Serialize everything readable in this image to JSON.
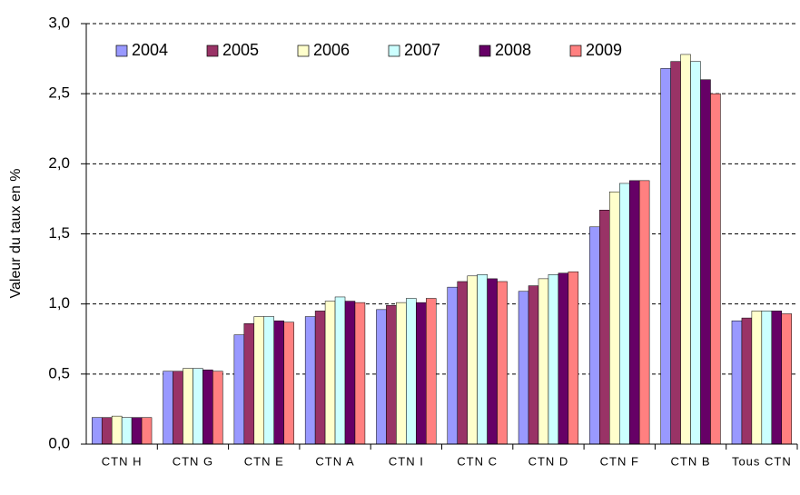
{
  "chart_data": {
    "type": "bar",
    "y_label": "Valeur du taux en %",
    "categories": [
      "CTN H",
      "CTN G",
      "CTN E",
      "CTN A",
      "CTN I",
      "CTN C",
      "CTN D",
      "CTN F",
      "CTN B",
      "Tous CTN"
    ],
    "series": [
      {
        "name": "2004",
        "color": "#9999ff",
        "values": [
          0.19,
          0.52,
          0.78,
          0.91,
          0.96,
          1.12,
          1.09,
          1.55,
          2.68,
          0.88
        ]
      },
      {
        "name": "2005",
        "color": "#993366",
        "values": [
          0.19,
          0.52,
          0.86,
          0.95,
          0.99,
          1.16,
          1.13,
          1.67,
          2.73,
          0.9
        ]
      },
      {
        "name": "2006",
        "color": "#ffffcc",
        "values": [
          0.2,
          0.54,
          0.91,
          1.02,
          1.01,
          1.2,
          1.18,
          1.8,
          2.78,
          0.95
        ]
      },
      {
        "name": "2007",
        "color": "#ccffff",
        "values": [
          0.19,
          0.54,
          0.91,
          1.05,
          1.04,
          1.21,
          1.21,
          1.86,
          2.73,
          0.95
        ]
      },
      {
        "name": "2008",
        "color": "#660066",
        "values": [
          0.19,
          0.53,
          0.88,
          1.02,
          1.01,
          1.18,
          1.22,
          1.88,
          2.6,
          0.95
        ]
      },
      {
        "name": "2009",
        "color": "#ff8080",
        "values": [
          0.19,
          0.52,
          0.87,
          1.01,
          1.04,
          1.16,
          1.23,
          1.88,
          2.5,
          0.93
        ]
      }
    ],
    "ylim": [
      0,
      3
    ],
    "yticks": [
      {
        "value": 0,
        "label": "0,0"
      },
      {
        "value": 0.5,
        "label": "0,5"
      },
      {
        "value": 1,
        "label": "1,0"
      },
      {
        "value": 1.5,
        "label": "1,5"
      },
      {
        "value": 2,
        "label": "2,0"
      },
      {
        "value": 2.5,
        "label": "2,5"
      },
      {
        "value": 3,
        "label": "3,0"
      }
    ],
    "grid": true,
    "legend": "top"
  }
}
